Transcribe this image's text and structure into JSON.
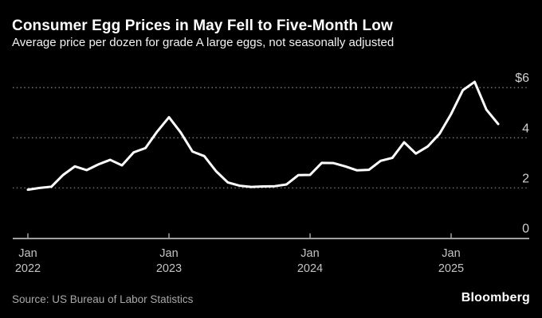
{
  "header": {
    "title": "Consumer Egg Prices in May Fell to Five-Month Low",
    "subtitle": "Average price per dozen for grade A large eggs, not seasonally adjusted"
  },
  "footer": {
    "source": "Source: US Bureau of Labor Statistics",
    "brand": "Bloomberg"
  },
  "colors": {
    "background": "#000000",
    "line": "#ffffff",
    "grid": "#818181",
    "axis": "#a0a0a0",
    "y_tick_label": "#cfcfcf",
    "x_tick_label": "#c4c4c4",
    "title_text": "#ffffff",
    "muted_text": "#a9a9a9"
  },
  "chart_data": {
    "type": "line",
    "title": "Consumer Egg Prices in May Fell to Five-Month Low",
    "subtitle": "Average price per dozen for grade A large eggs, not seasonally adjusted",
    "unit": "USD per dozen",
    "grid": "horizontal-dotted",
    "legend": "none",
    "ylim": [
      0,
      6.6
    ],
    "x": [
      "Jan 2022",
      "Feb 2022",
      "Mar 2022",
      "Apr 2022",
      "May 2022",
      "Jun 2022",
      "Jul 2022",
      "Aug 2022",
      "Sep 2022",
      "Oct 2022",
      "Nov 2022",
      "Dec 2022",
      "Jan 2023",
      "Feb 2023",
      "Mar 2023",
      "Apr 2023",
      "May 2023",
      "Jun 2023",
      "Jul 2023",
      "Aug 2023",
      "Sep 2023",
      "Oct 2023",
      "Nov 2023",
      "Dec 2023",
      "Jan 2024",
      "Feb 2024",
      "Mar 2024",
      "Apr 2024",
      "May 2024",
      "Jun 2024",
      "Jul 2024",
      "Aug 2024",
      "Sep 2024",
      "Oct 2024",
      "Nov 2024",
      "Dec 2024",
      "Jan 2025",
      "Feb 2025",
      "Mar 2025",
      "Apr 2025",
      "May 2025"
    ],
    "series": [
      {
        "name": "Average price per dozen, grade A large eggs (not seasonally adjusted)",
        "values": [
          1.93,
          2.0,
          2.05,
          2.52,
          2.86,
          2.71,
          2.94,
          3.12,
          2.9,
          3.42,
          3.59,
          4.25,
          4.82,
          4.21,
          3.45,
          3.27,
          2.67,
          2.22,
          2.09,
          2.04,
          2.06,
          2.07,
          2.14,
          2.51,
          2.52,
          3.0,
          2.99,
          2.86,
          2.7,
          2.72,
          3.08,
          3.2,
          3.82,
          3.37,
          3.65,
          4.15,
          4.95,
          5.9,
          6.23,
          5.12,
          4.55
        ]
      }
    ],
    "y_ticks": [
      {
        "label": "$6",
        "value": 6
      },
      {
        "label": "4",
        "value": 4
      },
      {
        "label": "2",
        "value": 2
      },
      {
        "label": "0",
        "value": 0
      }
    ],
    "x_ticks": [
      {
        "month": "Jan",
        "year": "2022",
        "index": 0
      },
      {
        "month": "Jan",
        "year": "2023",
        "index": 12
      },
      {
        "month": "Jan",
        "year": "2024",
        "index": 24
      },
      {
        "month": "Jan",
        "year": "2025",
        "index": 36
      }
    ]
  }
}
